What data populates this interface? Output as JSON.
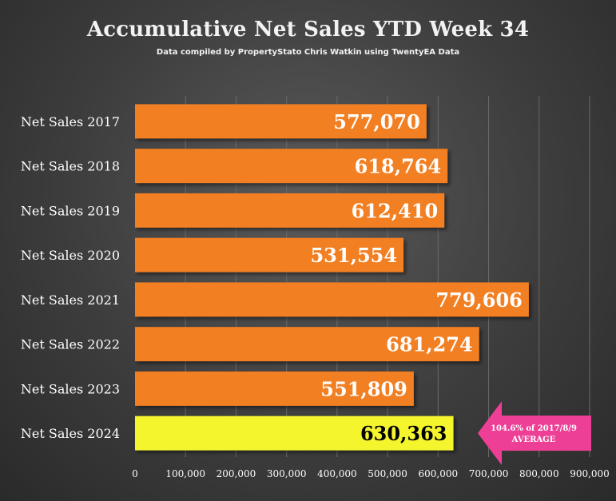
{
  "chart_data": {
    "type": "bar",
    "orientation": "horizontal",
    "title": "Accumulative Net Sales YTD Week 34",
    "subtitle": "Data compiled by PropertyStato Chris Watkin using TwentyEA Data",
    "categories": [
      "Net Sales 2017",
      "Net Sales 2018",
      "Net Sales 2019",
      "Net Sales 2020",
      "Net Sales 2021",
      "Net Sales 2022",
      "Net Sales 2023",
      "Net Sales 2024"
    ],
    "values": [
      577070,
      618764,
      612410,
      531554,
      779606,
      681274,
      551809,
      630363
    ],
    "value_labels": [
      "577,070",
      "618,764",
      "612,410",
      "531,554",
      "779,606",
      "681,274",
      "551,809",
      "630,363"
    ],
    "xlim": [
      0,
      900000
    ],
    "x_ticks": [
      0,
      100000,
      200000,
      300000,
      400000,
      500000,
      600000,
      700000,
      800000,
      900000
    ],
    "x_tick_labels": [
      "0",
      "100,000",
      "200,000",
      "300,000",
      "400,000",
      "500,000",
      "600,000",
      "700,000",
      "800,000",
      "900,000"
    ],
    "grid": true,
    "colors": {
      "bar": "#f27f21",
      "highlight_bar": "#f5f52e",
      "value_text": "#ffffff",
      "highlight_value_text": "#000000",
      "callout": "#ee3f96"
    },
    "highlight_index": 7,
    "annotation": {
      "line1": "104.6% of 2017/8/9",
      "line2": "AVERAGE"
    }
  }
}
